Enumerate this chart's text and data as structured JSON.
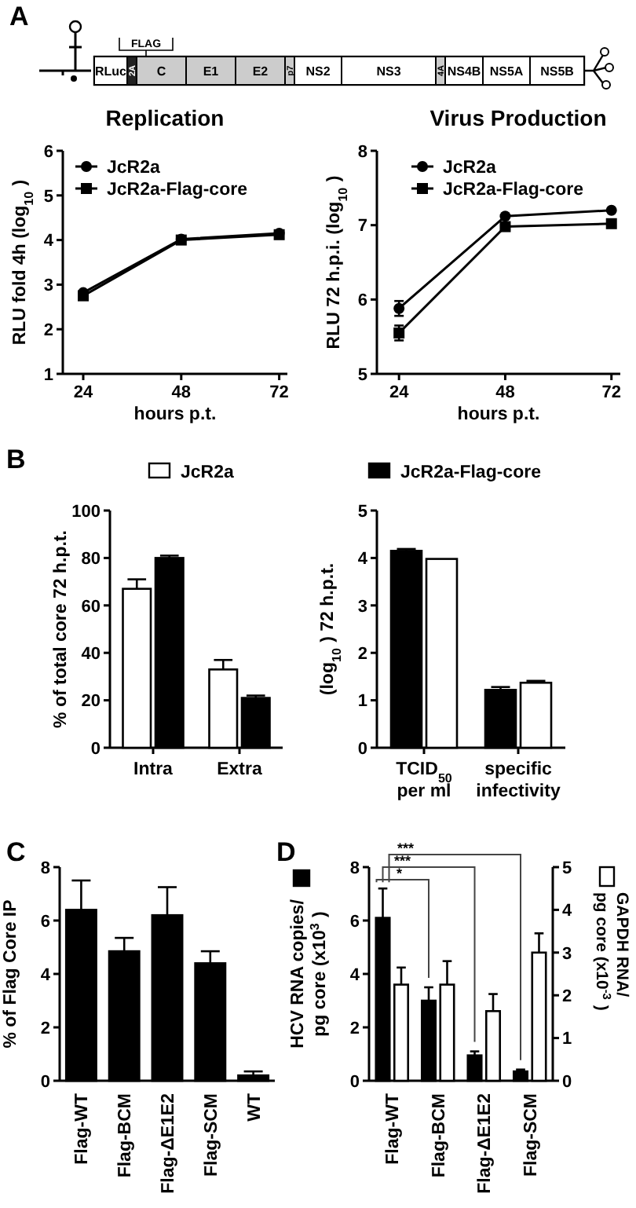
{
  "chart_data": [
    {
      "type": "other",
      "annotations": [
        "A",
        "FLAG",
        "RLuc",
        "2A",
        "C",
        "E1",
        "E2",
        "p7",
        "NS2",
        "NS3",
        "4A",
        "NS4B",
        "NS5A",
        "NS5B"
      ]
    },
    {
      "type": "line",
      "title": "Replication",
      "xlabel": "hours p.t.",
      "ylabel": "RLU fold 4h (log$_{10}$)",
      "x": [
        24,
        48,
        72
      ],
      "xlim": [
        19,
        74
      ],
      "xticks": [
        24,
        48,
        72
      ],
      "ylim": [
        1,
        6
      ],
      "yticks": [
        1,
        2,
        3,
        4,
        5,
        6
      ],
      "legend": "top left",
      "line_style": "solid",
      "series": [
        {
          "name": "JcR2a",
          "color": "#000000",
          "marker": "circle",
          "values": [
            2.82,
            4.02,
            4.15
          ]
        },
        {
          "name": "JcR2a-Flag-core",
          "color": "#000000",
          "marker": "square",
          "values": [
            2.75,
            4.0,
            4.12
          ]
        }
      ]
    },
    {
      "type": "line",
      "title": "Virus Production",
      "xlabel": "hours p.t.",
      "ylabel": "RLU 72 h.p.i. (log$_{10}$)",
      "x": [
        24,
        48,
        72
      ],
      "xlim": [
        19,
        74
      ],
      "xticks": [
        24,
        48,
        72
      ],
      "ylim": [
        5,
        8
      ],
      "yticks": [
        5,
        6,
        7,
        8
      ],
      "legend": "top left",
      "line_style": "solid",
      "series": [
        {
          "name": "JcR2a",
          "color": "#000000",
          "marker": "circle",
          "values": [
            5.88,
            7.12,
            7.2
          ],
          "errors": [
            0.1,
            null,
            null
          ]
        },
        {
          "name": "JcR2a-Flag-core",
          "color": "#000000",
          "marker": "square",
          "values": [
            5.55,
            6.98,
            7.02
          ],
          "errors": [
            0.1,
            null,
            null
          ]
        }
      ]
    },
    {
      "type": "bar",
      "annotations": [
        "B"
      ],
      "ylabel": "% of total core 72 h.p.t.",
      "categories": [
        "Intra",
        "Extra"
      ],
      "ylim": [
        0,
        100
      ],
      "yticks": [
        0,
        20,
        40,
        60,
        80,
        100
      ],
      "legend": "top",
      "series": [
        {
          "name": "JcR2a",
          "color": "#ffffff",
          "values": [
            67,
            33
          ],
          "errors": [
            [
              67,
              71
            ],
            [
              33,
              37
            ]
          ]
        },
        {
          "color": "#000000",
          "values": [
            80,
            21
          ],
          "errors": [
            [
              80,
              81
            ],
            [
              21,
              22
            ]
          ]
        }
      ]
    },
    {
      "type": "bar",
      "ylabel": "(log$_{10}$) 72 h.p.t.",
      "categories": [
        "TCID$_{50}$ per ml",
        "specific infectivity"
      ],
      "ylim": [
        0,
        5
      ],
      "yticks": [
        0,
        1,
        2,
        3,
        4,
        5
      ],
      "legend": "top",
      "series": [
        {
          "name": "JcR2a-Flag-core",
          "color": "#000000",
          "values": [
            4.15,
            1.22
          ],
          "errors": [
            [
              4.15,
              4.19
            ],
            [
              1.22,
              1.28
            ]
          ]
        },
        {
          "color": "#ffffff",
          "values": [
            3.98,
            1.37
          ],
          "errors": [
            null,
            [
              1.37,
              1.41
            ]
          ]
        }
      ]
    },
    {
      "type": "bar",
      "annotations": [
        "C"
      ],
      "ylabel": "% of Flag Core IP",
      "categories": [
        "Flag-WT",
        "Flag-BCM",
        "Flag-ΔE1E2",
        "Flag-SCM",
        "WT"
      ],
      "ylim": [
        0,
        8
      ],
      "yticks": [
        0,
        2,
        4,
        6,
        8
      ],
      "series": [
        {
          "color": "#000000",
          "values": [
            6.4,
            4.85,
            6.2,
            4.4,
            0.2
          ],
          "errors": [
            [
              6.4,
              7.5
            ],
            [
              4.85,
              5.35
            ],
            [
              6.2,
              7.25
            ],
            [
              4.4,
              4.85
            ],
            [
              0.2,
              0.35
            ]
          ]
        }
      ]
    },
    {
      "type": "bar",
      "annotations": [
        "D",
        "*",
        "***",
        "***"
      ],
      "ylabel": "HCV RNA copies/ pg core (x10$^{3}$)",
      "y2label": "GAPDH RNA/ pg core  (x10$^{-3}$)",
      "categories": [
        "Flag-WT",
        "Flag-BCM",
        "Flag-ΔE1E2",
        "Flag-SCM"
      ],
      "ylim": [
        0,
        8
      ],
      "yticks": [
        0,
        2,
        4,
        6,
        8
      ],
      "y2lim": [
        0,
        5
      ],
      "y2ticks": [
        0,
        1,
        2,
        3,
        4,
        5
      ],
      "series": [
        {
          "color": "#000000",
          "values": [
            6.1,
            3.0,
            0.95,
            0.35
          ],
          "errors": [
            [
              6.1,
              7.2
            ],
            [
              3.0,
              3.5
            ],
            [
              0.95,
              1.1
            ],
            [
              0.35,
              0.42
            ]
          ]
        },
        {
          "color": "#ffffff",
          "axis": "y2",
          "values": [
            2.25,
            2.25,
            1.63,
            3.0
          ],
          "errors": [
            [
              2.25,
              2.65
            ],
            [
              2.25,
              2.8
            ],
            [
              1.63,
              2.03
            ],
            [
              3.0,
              3.45
            ]
          ]
        }
      ]
    }
  ]
}
